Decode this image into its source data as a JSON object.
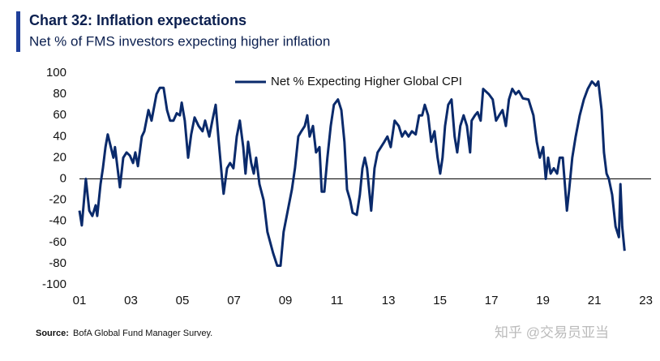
{
  "chart_data": {
    "type": "line",
    "title": "Chart 32: Inflation expectations",
    "subtitle": "Net % of FMS investors expecting higher inflation",
    "source_label": "Source:",
    "source": "BofA Global Fund Manager Survey.",
    "watermark": "知乎 @交易员亚当",
    "legend": "top",
    "xlim": [
      1,
      23.2
    ],
    "ylim": [
      -100,
      100
    ],
    "yticks": [
      -100,
      -80,
      -60,
      -40,
      -20,
      0,
      20,
      40,
      60,
      80,
      100
    ],
    "xticks": [
      {
        "value": 1,
        "label": "01"
      },
      {
        "value": 3,
        "label": "03"
      },
      {
        "value": 5,
        "label": "05"
      },
      {
        "value": 7,
        "label": "07"
      },
      {
        "value": 9,
        "label": "09"
      },
      {
        "value": 11,
        "label": "11"
      },
      {
        "value": 13,
        "label": "13"
      },
      {
        "value": 15,
        "label": "15"
      },
      {
        "value": 17,
        "label": "17"
      },
      {
        "value": 19,
        "label": "19"
      },
      {
        "value": 21,
        "label": "21"
      },
      {
        "value": 23,
        "label": "23"
      }
    ],
    "x": [
      1.0,
      1.09,
      1.25,
      1.38,
      1.5,
      1.63,
      1.69,
      1.82,
      1.91,
      2.01,
      2.1,
      2.32,
      2.38,
      2.57,
      2.7,
      2.83,
      2.96,
      3.08,
      3.17,
      3.27,
      3.42,
      3.52,
      3.68,
      3.8,
      3.99,
      4.12,
      4.27,
      4.4,
      4.52,
      4.65,
      4.78,
      4.9,
      4.97,
      5.09,
      5.22,
      5.34,
      5.47,
      5.63,
      5.78,
      5.88,
      6.04,
      6.16,
      6.29,
      6.41,
      6.54,
      6.6,
      6.73,
      6.85,
      6.98,
      7.11,
      7.23,
      7.36,
      7.45,
      7.55,
      7.67,
      7.77,
      7.86,
      7.99,
      8.15,
      8.3,
      8.52,
      8.68,
      8.81,
      8.93,
      9.09,
      9.25,
      9.37,
      9.5,
      9.62,
      9.75,
      9.85,
      9.94,
      10.07,
      10.19,
      10.32,
      10.41,
      10.51,
      10.63,
      10.76,
      10.88,
      11.04,
      11.17,
      11.29,
      11.39,
      11.51,
      11.61,
      11.77,
      11.89,
      11.99,
      12.08,
      12.17,
      12.33,
      12.46,
      12.58,
      12.71,
      12.84,
      12.96,
      13.09,
      13.24,
      13.4,
      13.53,
      13.65,
      13.78,
      13.91,
      14.06,
      14.19,
      14.31,
      14.41,
      14.54,
      14.66,
      14.79,
      14.91,
      15.01,
      15.1,
      15.2,
      15.32,
      15.45,
      15.57,
      15.67,
      15.79,
      15.92,
      16.05,
      16.17,
      16.23,
      16.36,
      16.46,
      16.58,
      16.68,
      16.9,
      17.05,
      17.18,
      17.3,
      17.43,
      17.56,
      17.68,
      17.81,
      17.94,
      18.06,
      18.22,
      18.44,
      18.63,
      18.76,
      18.88,
      19.01,
      19.11,
      19.2,
      19.3,
      19.42,
      19.55,
      19.65,
      19.77,
      19.93,
      20.02,
      20.14,
      20.27,
      20.43,
      20.59,
      20.74,
      20.9,
      21.06,
      21.15,
      21.28,
      21.37,
      21.47,
      21.56,
      21.69,
      21.82,
      21.95,
      22.01,
      22.08,
      22.17
    ],
    "series": [
      {
        "name": "Net % Expecting Higher Global CPI",
        "color": "#0a2a6b",
        "values": [
          -30,
          -44,
          0,
          -30,
          -35,
          -25,
          -35,
          -5,
          10,
          30,
          42,
          20,
          30,
          -8,
          20,
          25,
          22,
          15,
          25,
          12,
          40,
          45,
          65,
          55,
          80,
          86,
          86,
          65,
          55,
          55,
          62,
          60,
          72,
          55,
          20,
          42,
          58,
          50,
          45,
          55,
          40,
          55,
          70,
          35,
          0,
          -14,
          10,
          15,
          10,
          40,
          55,
          30,
          5,
          35,
          15,
          5,
          20,
          -5,
          -20,
          -50,
          -70,
          -82,
          -82,
          -50,
          -30,
          -10,
          10,
          40,
          45,
          50,
          60,
          40,
          50,
          25,
          30,
          -12,
          -12,
          20,
          50,
          70,
          75,
          65,
          35,
          -10,
          -20,
          -32,
          -34,
          -15,
          10,
          20,
          10,
          -30,
          10,
          25,
          30,
          35,
          40,
          30,
          55,
          50,
          40,
          45,
          40,
          45,
          42,
          60,
          60,
          70,
          60,
          35,
          45,
          20,
          5,
          20,
          50,
          70,
          75,
          40,
          25,
          50,
          60,
          50,
          25,
          55,
          60,
          63,
          55,
          85,
          80,
          75,
          55,
          60,
          65,
          50,
          75,
          85,
          80,
          83,
          76,
          75,
          60,
          35,
          20,
          30,
          0,
          20,
          5,
          10,
          5,
          20,
          20,
          -30,
          -10,
          20,
          40,
          60,
          75,
          85,
          92,
          88,
          92,
          65,
          25,
          5,
          0,
          -15,
          -45,
          -55,
          -5,
          -45,
          -68
        ]
      }
    ]
  }
}
